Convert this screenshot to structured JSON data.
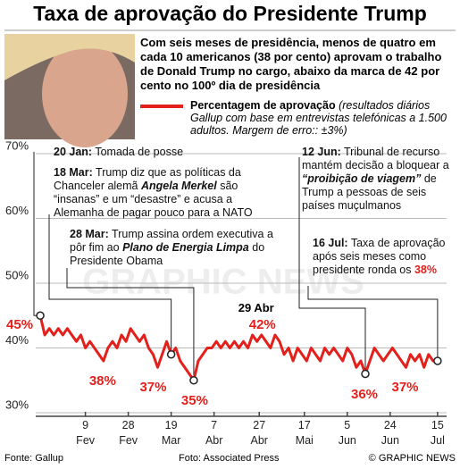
{
  "chart_data": {
    "type": "line",
    "title": "Taxa de aprovação do Presidente Trump",
    "subtitle": "Com seis meses de presidência, menos de quatro em cada 10 americanos (38 por cento) aprovam o trabalho de Donald Trump no cargo, abaixo da marca de 42 por cento no 100º dia de presidência",
    "legend_note": "(resultados diários Gallup com base em entrevistas telefónicas a 1.500 adultos. Margem de erro:: ±3%)",
    "x": [
      20,
      22,
      24,
      26,
      28,
      30,
      32,
      34,
      36,
      38,
      40,
      42,
      44,
      46,
      48,
      50,
      52,
      54,
      56,
      58,
      60,
      62,
      64,
      66,
      68,
      70,
      72,
      74,
      76,
      78,
      80,
      82,
      84,
      86,
      88,
      90,
      92,
      94,
      96,
      98,
      100,
      102,
      104,
      106,
      108,
      110,
      112,
      114,
      116,
      118,
      120,
      122,
      124,
      126,
      128,
      130,
      132,
      134,
      136,
      138,
      140,
      142,
      144,
      146,
      148,
      150,
      152,
      154,
      156,
      158,
      160,
      162,
      164,
      166,
      168,
      170,
      172,
      174,
      176,
      178,
      180,
      182,
      184,
      186,
      188,
      190,
      192,
      194,
      196
    ],
    "series": [
      {
        "name": "Percentagem de aprovação",
        "color": "#e3201b",
        "values": [
          45,
          42,
          43,
          42,
          43,
          42,
          43,
          42,
          41,
          42,
          40,
          41,
          40,
          39,
          38,
          40,
          41,
          40,
          42,
          41,
          43,
          42,
          41,
          42,
          40,
          39,
          37,
          39,
          41,
          39,
          40,
          38,
          37,
          36,
          35,
          38,
          39,
          40,
          40,
          41,
          40,
          41,
          40,
          41,
          40,
          41,
          40,
          42,
          41,
          42,
          41,
          40,
          42,
          41,
          39,
          40,
          38,
          40,
          39,
          38,
          40,
          39,
          38,
          40,
          39,
          40,
          39,
          38,
          40,
          39,
          37,
          38,
          36,
          38,
          40,
          39,
          38,
          39,
          40,
          39,
          38,
          37,
          39,
          38,
          39,
          37,
          39,
          38,
          38
        ]
      }
    ],
    "xlim": [
      18,
      200
    ],
    "xticks": [
      {
        "value": 40,
        "label": "9 Fev"
      },
      {
        "value": 59,
        "label": "28 Fev"
      },
      {
        "value": 78,
        "label": "19 Mar"
      },
      {
        "value": 97,
        "label": "7 Abr"
      },
      {
        "value": 117,
        "label": "27 Abr"
      },
      {
        "value": 137,
        "label": "17 Mai"
      },
      {
        "value": 156,
        "label": "5 Jun"
      },
      {
        "value": 175,
        "label": "24 Jun"
      },
      {
        "value": 196,
        "label": "15 Jul"
      }
    ],
    "ylim": [
      30,
      70
    ],
    "yticks": [
      {
        "value": 30,
        "label": "30%"
      },
      {
        "value": 40,
        "label": "40%"
      },
      {
        "value": 50,
        "label": "50%"
      },
      {
        "value": 60,
        "label": "60%"
      },
      {
        "value": 70,
        "label": "70%"
      }
    ],
    "grid": true,
    "callouts": [
      {
        "x": 20,
        "value": 45,
        "label": "45%"
      },
      {
        "x": 48,
        "value": 38,
        "label": "38%"
      },
      {
        "x": 72,
        "value": 37,
        "label": "37%"
      },
      {
        "x": 88,
        "value": 35,
        "label": "35%"
      },
      {
        "x": 118,
        "value": 42,
        "label": "42%",
        "date": "29 Abr"
      },
      {
        "x": 164,
        "value": 36,
        "label": "36%"
      },
      {
        "x": 182,
        "value": 37,
        "label": "37%"
      }
    ],
    "events": [
      {
        "date": "20 Jan:",
        "x": 20,
        "value": 45,
        "text": [
          {
            "t": " Tomada de posse"
          }
        ]
      },
      {
        "date": "18 Mar:",
        "x": 78,
        "value": 39,
        "text": [
          {
            "t": " Trump diz que as políticas da Chanceler alemã "
          },
          {
            "t": "Angela Merkel",
            "s": "bi"
          },
          {
            "t": " são “insanas” e um “desastre” e acusa a Alemanha de pagar pouco para a NATO"
          }
        ]
      },
      {
        "date": "28 Mar:",
        "x": 88,
        "value": 35,
        "text": [
          {
            "t": " Trump assina ordem executiva a pôr fim ao "
          },
          {
            "t": "Plano de Energia Limpa",
            "s": "bi"
          },
          {
            "t": " do Presidente Obama"
          }
        ]
      },
      {
        "date": "12 Jun:",
        "x": 164,
        "value": 36,
        "text": [
          {
            "t": " Tribunal de recurso mantém decisão a bloquear a "
          },
          {
            "t": "“proibição de viagem”",
            "s": "bi"
          },
          {
            "t": " de Trump a pessoas de seis países muçulmanos"
          }
        ]
      },
      {
        "date": "16 Jul:",
        "x": 196,
        "value": 38,
        "text": [
          {
            "t": " Taxa de aprovação após seis meses como presidente ronda os "
          },
          {
            "t": "38%",
            "s": "r"
          }
        ]
      }
    ],
    "watermark": "GRAPHIC NEWS",
    "source": "Fonte: Gallup",
    "photo_credit": "Foto: Associated Press",
    "copyright": "© GRAPHIC NEWS"
  }
}
